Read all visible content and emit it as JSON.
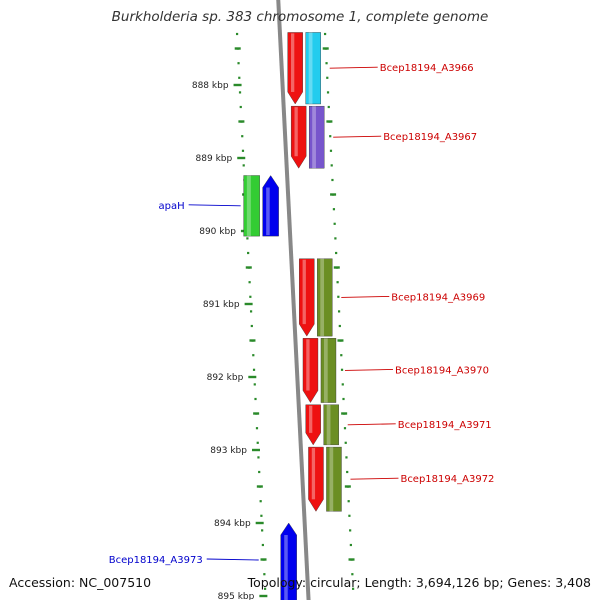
{
  "title": "Burkholderia sp. 383 chromosome 1, complete genome",
  "footer": {
    "accession": "Accession: NC_007510",
    "summary": "Topology: circular; Length: 3,694,126 bp; Genes: 3,408"
  },
  "colors": {
    "backbone": "#888888",
    "ticks": "#2a8a2a",
    "forward_label": "#0000cc",
    "reverse_label": "#cc0000"
  },
  "chart_data": {
    "type": "diagram",
    "axis_unit": "kbp",
    "tick_labels": [
      {
        "kbp": 888,
        "label": "888 kbp"
      },
      {
        "kbp": 889,
        "label": "889 kbp"
      },
      {
        "kbp": 890,
        "label": "890 kbp"
      },
      {
        "kbp": 891,
        "label": "891 kbp"
      },
      {
        "kbp": 892,
        "label": "892 kbp"
      },
      {
        "kbp": 893,
        "label": "893 kbp"
      },
      {
        "kbp": 894,
        "label": "894 kbp"
      },
      {
        "kbp": 895,
        "label": "895 kbp"
      }
    ],
    "genes": [
      {
        "label": "Bcep18194_A3966",
        "strand": "reverse",
        "start_kbp": 887.28,
        "end_kbp": 888.26,
        "color": "#ee1111",
        "partner_color": "#22ccee"
      },
      {
        "label": "Bcep18194_A3967",
        "strand": "reverse",
        "start_kbp": 888.29,
        "end_kbp": 889.14,
        "color": "#ee1111",
        "partner_color": "#7755cc"
      },
      {
        "label": "apaH",
        "strand": "forward",
        "start_kbp": 889.24,
        "end_kbp": 890.07,
        "color": "#0000ee",
        "partner_color": "#33cc33"
      },
      {
        "label": "Bcep18194_A3969",
        "strand": "reverse",
        "start_kbp": 890.38,
        "end_kbp": 891.44,
        "color": "#ee1111",
        "partner_color": "#6b8e23"
      },
      {
        "label": "Bcep18194_A3970",
        "strand": "reverse",
        "start_kbp": 891.47,
        "end_kbp": 892.35,
        "color": "#ee1111",
        "partner_color": "#6b8e23"
      },
      {
        "label": "Bcep18194_A3971",
        "strand": "reverse",
        "start_kbp": 892.38,
        "end_kbp": 892.93,
        "color": "#ee1111",
        "partner_color": "#6b8e23"
      },
      {
        "label": "Bcep18194_A3972",
        "strand": "reverse",
        "start_kbp": 892.96,
        "end_kbp": 893.84,
        "color": "#ee1111",
        "partner_color": "#6b8e23"
      },
      {
        "label": "Bcep18194_A3973",
        "strand": "forward",
        "start_kbp": 894.0,
        "end_kbp": 895.1,
        "color": "#0000ee",
        "partner_color": ""
      }
    ]
  }
}
